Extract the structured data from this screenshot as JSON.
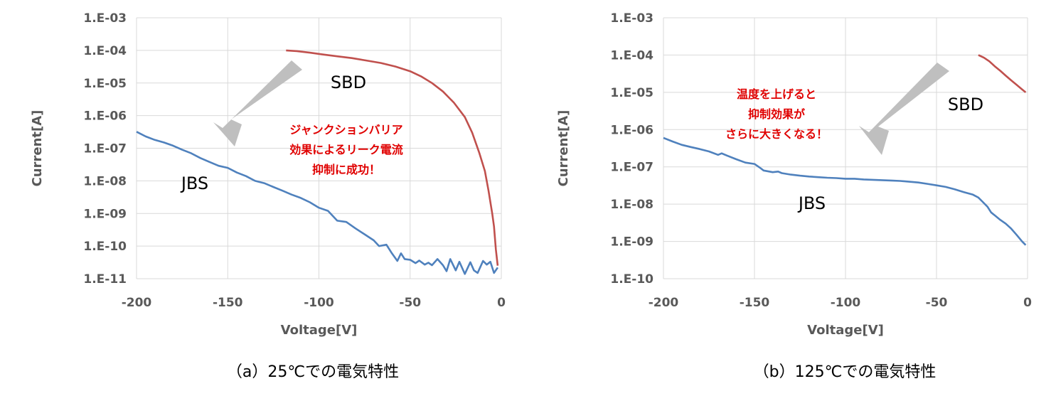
{
  "colors": {
    "sbd": "#C0504D",
    "jbs": "#4F81BD",
    "grid": "#D9D9D9",
    "annotation": "#E00000",
    "arrow": "#BFBFBF"
  },
  "chart_data": [
    {
      "type": "line",
      "log_y": true,
      "caption": "（a）25℃での電気特性",
      "xlabel": "Voltage[V]",
      "ylabel": "Current[A]",
      "xlim": [
        -200,
        0
      ],
      "ylim_exp": [
        -11,
        -3
      ],
      "x_ticks": [
        "-200",
        "-150",
        "-100",
        "-50",
        "0"
      ],
      "y_ticks": [
        "1.E-03",
        "1.E-04",
        "1.E-05",
        "1.E-06",
        "1.E-07",
        "1.E-08",
        "1.E-09",
        "1.E-10",
        "1.E-11"
      ],
      "grid": true,
      "series": [
        {
          "name": "SBD",
          "color_key": "sbd",
          "x": [
            -118,
            -112,
            -105,
            -98,
            -90,
            -82,
            -74,
            -66,
            -58,
            -50,
            -44,
            -38,
            -32,
            -26,
            -20,
            -16,
            -12,
            -9,
            -7,
            -5,
            -4,
            -3,
            -2
          ],
          "y": [
            0.0001,
            9.5e-05,
            8.5e-05,
            7.5e-05,
            6.6e-05,
            5.8e-05,
            4.9e-05,
            4.1e-05,
            3.2e-05,
            2.3e-05,
            1.6e-05,
            1e-05,
            5.5e-06,
            2.5e-06,
            9e-07,
            3e-07,
            7e-08,
            2e-08,
            5e-09,
            1e-09,
            4e-10,
            8e-11,
            2.5e-11
          ]
        },
        {
          "name": "JBS",
          "color_key": "jbs",
          "x": [
            -200,
            -195,
            -190,
            -185,
            -180,
            -175,
            -170,
            -165,
            -160,
            -155,
            -150,
            -145,
            -140,
            -135,
            -130,
            -125,
            -120,
            -115,
            -110,
            -105,
            -100,
            -95,
            -90,
            -85,
            -80,
            -75,
            -70,
            -67,
            -63,
            -60,
            -57,
            -55,
            -53,
            -50,
            -47,
            -45,
            -42,
            -40,
            -38,
            -35,
            -32,
            -30,
            -28,
            -25,
            -23,
            -20,
            -17,
            -15,
            -13,
            -10,
            -8,
            -6,
            -4,
            -2
          ],
          "y": [
            3.2e-07,
            2.3e-07,
            1.8e-07,
            1.5e-07,
            1.2e-07,
            9e-08,
            7e-08,
            5e-08,
            3.8e-08,
            2.9e-08,
            2.5e-08,
            1.8e-08,
            1.4e-08,
            1e-08,
            8.5e-09,
            6.5e-09,
            5e-09,
            3.8e-09,
            3e-09,
            2.2e-09,
            1.5e-09,
            1.2e-09,
            6e-10,
            5.5e-10,
            3.5e-10,
            2.3e-10,
            1.5e-10,
            1e-10,
            1.1e-10,
            6e-11,
            3.5e-11,
            6e-11,
            4e-11,
            3.8e-11,
            3e-11,
            3.6e-11,
            2.7e-11,
            3.1e-11,
            2.6e-11,
            4e-11,
            2.6e-11,
            1.7e-11,
            4e-11,
            1.8e-11,
            3.3e-11,
            1.4e-11,
            3.2e-11,
            1.8e-11,
            1.5e-11,
            3.5e-11,
            2.7e-11,
            3.3e-11,
            1.5e-11,
            2.2e-11
          ]
        }
      ],
      "annotation": [
        "ジャンクションバリア",
        "効果によるリーク電流",
        "抑制に成功！"
      ]
    },
    {
      "type": "line",
      "log_y": true,
      "caption": "（b）125℃での電気特性",
      "xlabel": "Voltage[V]",
      "ylabel": "Current[A]",
      "xlim": [
        -200,
        0
      ],
      "ylim_exp": [
        -10,
        -3
      ],
      "x_ticks": [
        "-200",
        "-150",
        "-100",
        "-50",
        "0"
      ],
      "y_ticks": [
        "1.E-03",
        "1.E-04",
        "1.E-05",
        "1.E-06",
        "1.E-07",
        "1.E-08",
        "1.E-09",
        "1.E-10"
      ],
      "grid": true,
      "series": [
        {
          "name": "SBD",
          "color_key": "sbd",
          "x": [
            -27,
            -24,
            -21,
            -18,
            -15,
            -12,
            -9,
            -6,
            -3,
            -1
          ],
          "y": [
            0.0001,
            8.5e-05,
            6.8e-05,
            5e-05,
            3.8e-05,
            2.8e-05,
            2.1e-05,
            1.6e-05,
            1.2e-05,
            1e-05
          ]
        },
        {
          "name": "JBS",
          "color_key": "jbs",
          "x": [
            -200,
            -195,
            -190,
            -185,
            -180,
            -175,
            -170,
            -168,
            -165,
            -160,
            -155,
            -150,
            -147,
            -145,
            -140,
            -137,
            -135,
            -130,
            -125,
            -120,
            -115,
            -110,
            -105,
            -100,
            -95,
            -90,
            -85,
            -80,
            -75,
            -70,
            -65,
            -60,
            -55,
            -50,
            -45,
            -40,
            -35,
            -30,
            -27,
            -25,
            -22,
            -20,
            -18,
            -15,
            -12,
            -9,
            -6,
            -3,
            -1
          ],
          "y": [
            6e-07,
            4.8e-07,
            3.9e-07,
            3.4e-07,
            3e-07,
            2.6e-07,
            2.1e-07,
            2.3e-07,
            2e-07,
            1.6e-07,
            1.3e-07,
            1.2e-07,
            9.5e-08,
            8e-08,
            7.2e-08,
            7.5e-08,
            6.8e-08,
            6.2e-08,
            5.8e-08,
            5.5e-08,
            5.3e-08,
            5.1e-08,
            5e-08,
            4.8e-08,
            4.8e-08,
            4.6e-08,
            4.5e-08,
            4.4e-08,
            4.3e-08,
            4.2e-08,
            4e-08,
            3.8e-08,
            3.5e-08,
            3.2e-08,
            2.9e-08,
            2.5e-08,
            2.1e-08,
            1.8e-08,
            1.5e-08,
            1.2e-08,
            8.5e-09,
            6e-09,
            5e-09,
            3.8e-09,
            3e-09,
            2.2e-09,
            1.5e-09,
            1e-09,
            8e-10
          ]
        }
      ],
      "annotation": [
        "温度を上げると",
        "抑制効果が",
        "さらに大きくなる！"
      ]
    }
  ]
}
